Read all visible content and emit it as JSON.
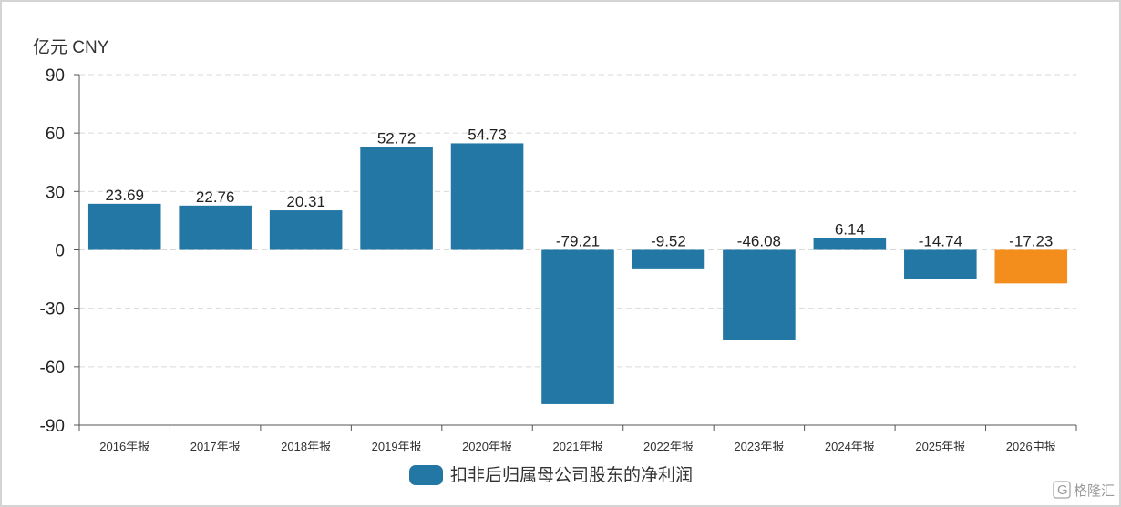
{
  "chart_data": {
    "type": "bar",
    "unit_label": "亿元  CNY",
    "categories": [
      "2016年报",
      "2017年报",
      "2018年报",
      "2019年报",
      "2020年报",
      "2021年报",
      "2022年报",
      "2023年报",
      "2024年报",
      "2025年报",
      "2026中报"
    ],
    "series": [
      {
        "name": "扣非后归属母公司股东的净利润",
        "values": [
          23.69,
          22.76,
          20.31,
          52.72,
          54.73,
          -79.21,
          -9.52,
          -46.08,
          6.14,
          -14.74,
          -17.23
        ],
        "labels": [
          "23.69",
          "22.76",
          "20.31",
          "52.72",
          "54.73",
          "-79.21",
          "-9.52",
          "-46.08",
          "6.14",
          "-14.74",
          "-17.23"
        ]
      }
    ],
    "ylim": [
      -90,
      90
    ],
    "yticks": [
      90,
      60,
      30,
      0,
      -30,
      -60,
      -90
    ],
    "grid": true,
    "legend_position": "bottom-center",
    "colors": {
      "bar": "#2277a4",
      "highlight": "#f38e1c",
      "highlight_index": 10
    }
  },
  "watermark": {
    "logo": "G",
    "text": "格隆汇"
  }
}
